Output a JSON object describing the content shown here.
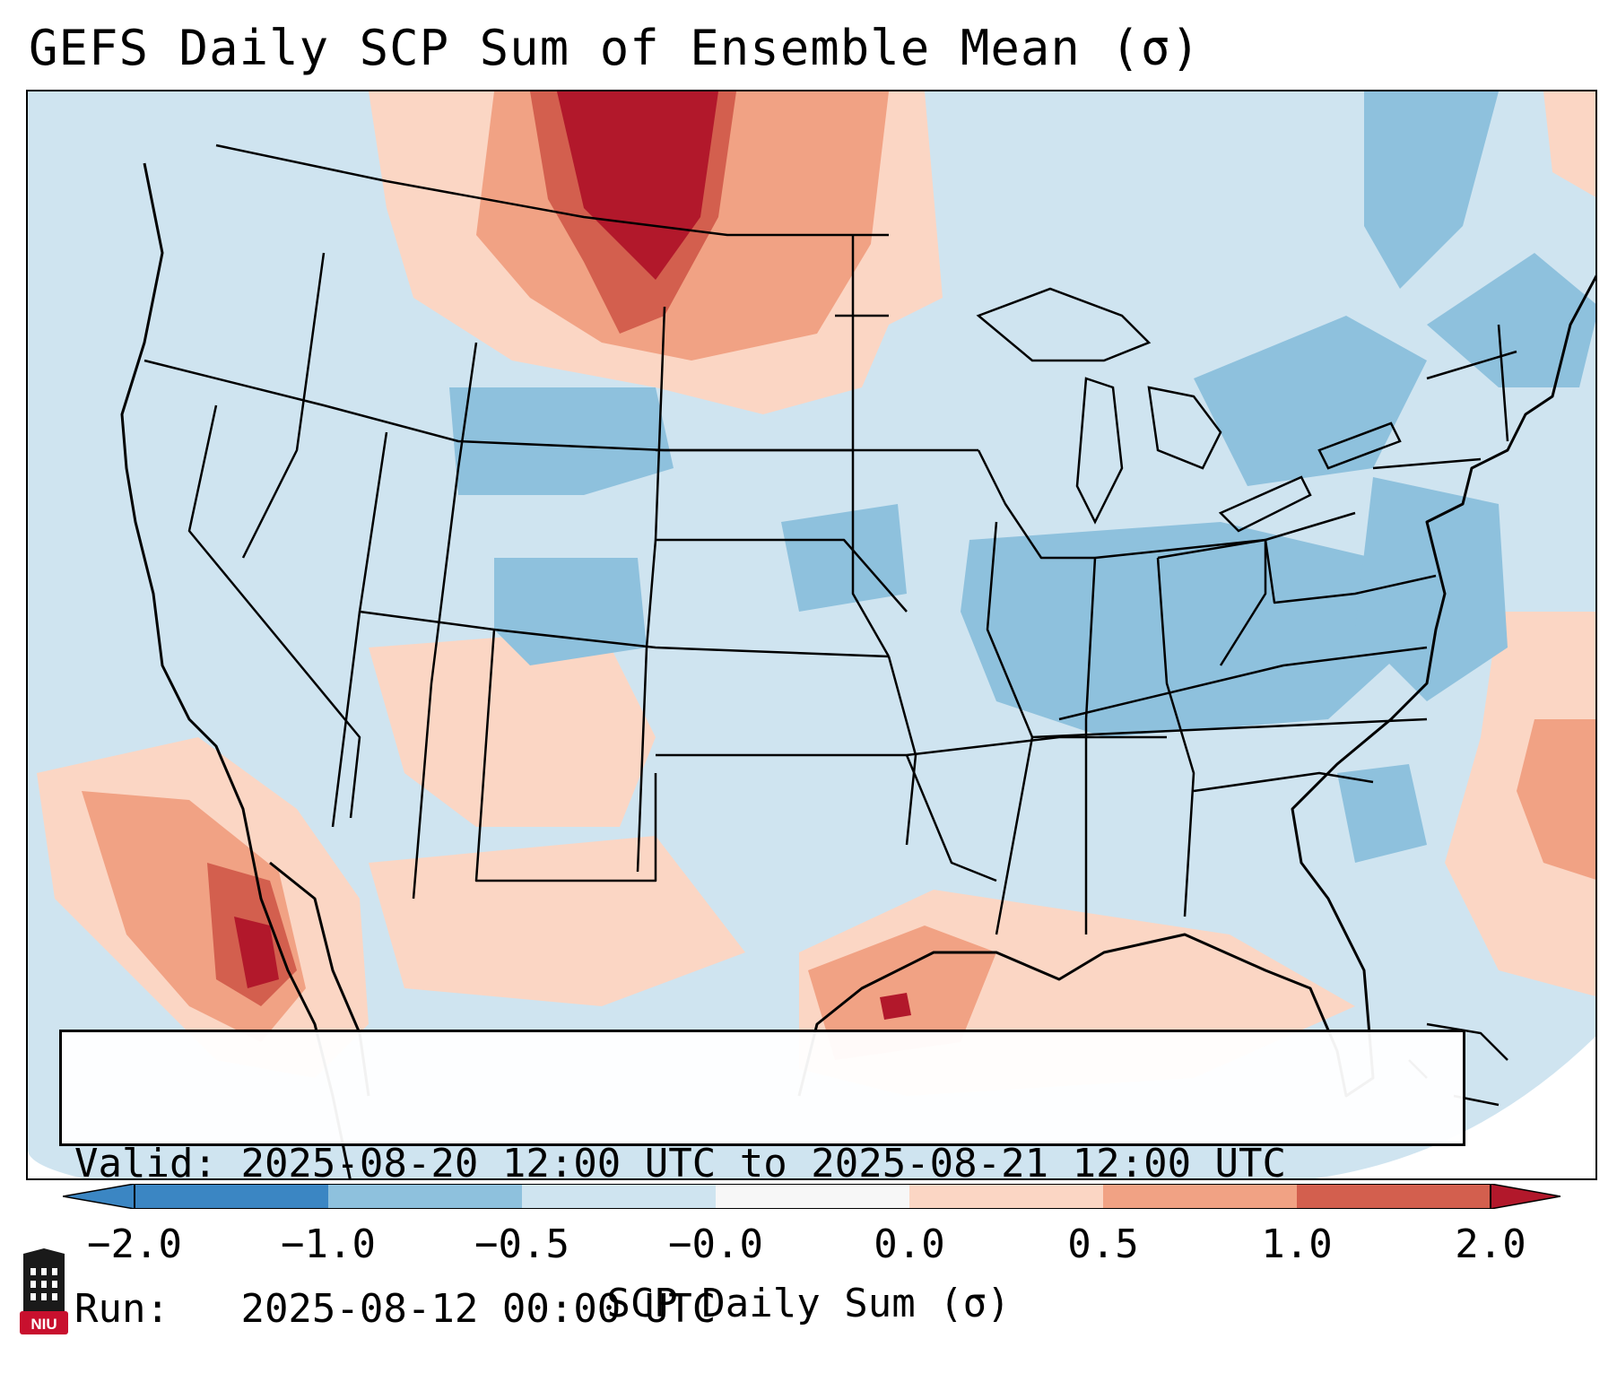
{
  "title": "GEFS Daily SCP Sum of Ensemble Mean (σ)",
  "info": {
    "valid_label": "Valid:",
    "valid_value": "2025-08-20 12:00 UTC to 2025-08-21 12:00 UTC",
    "run_label": "Run:",
    "run_value": "2025-08-12 00:00 UTC"
  },
  "colorbar": {
    "label": "SCP Daily Sum (σ)",
    "ticks": [
      "−2.0",
      "−1.0",
      "−0.5",
      "−0.0",
      "0.0",
      "0.5",
      "1.0",
      "2.0"
    ],
    "colors": [
      "#3b86c3",
      "#8ec1dd",
      "#cfe4f0",
      "#f7f7f7",
      "#fbd6c4",
      "#f1a284",
      "#d35f4e",
      "#b2182b"
    ],
    "extend": "both"
  },
  "map": {
    "region": "Contiguous United States",
    "anomaly_areas": [
      {
        "name": "Northern Plains / Montana",
        "level": "above 1.0"
      },
      {
        "name": "Gulf of California",
        "level": "above 1.0"
      },
      {
        "name": "Texas Gulf Coast",
        "level": "0.5 to 1.0"
      },
      {
        "name": "Western Atlantic",
        "level": "0.5 to 1.0"
      },
      {
        "name": "Ohio Valley / Mid-Atlantic",
        "level": "-1.0 to -0.5"
      },
      {
        "name": "Colorado / Wyoming",
        "level": "-1.0 to -0.5"
      }
    ]
  },
  "logo": {
    "text": "NIU",
    "color": "#c8102e"
  }
}
